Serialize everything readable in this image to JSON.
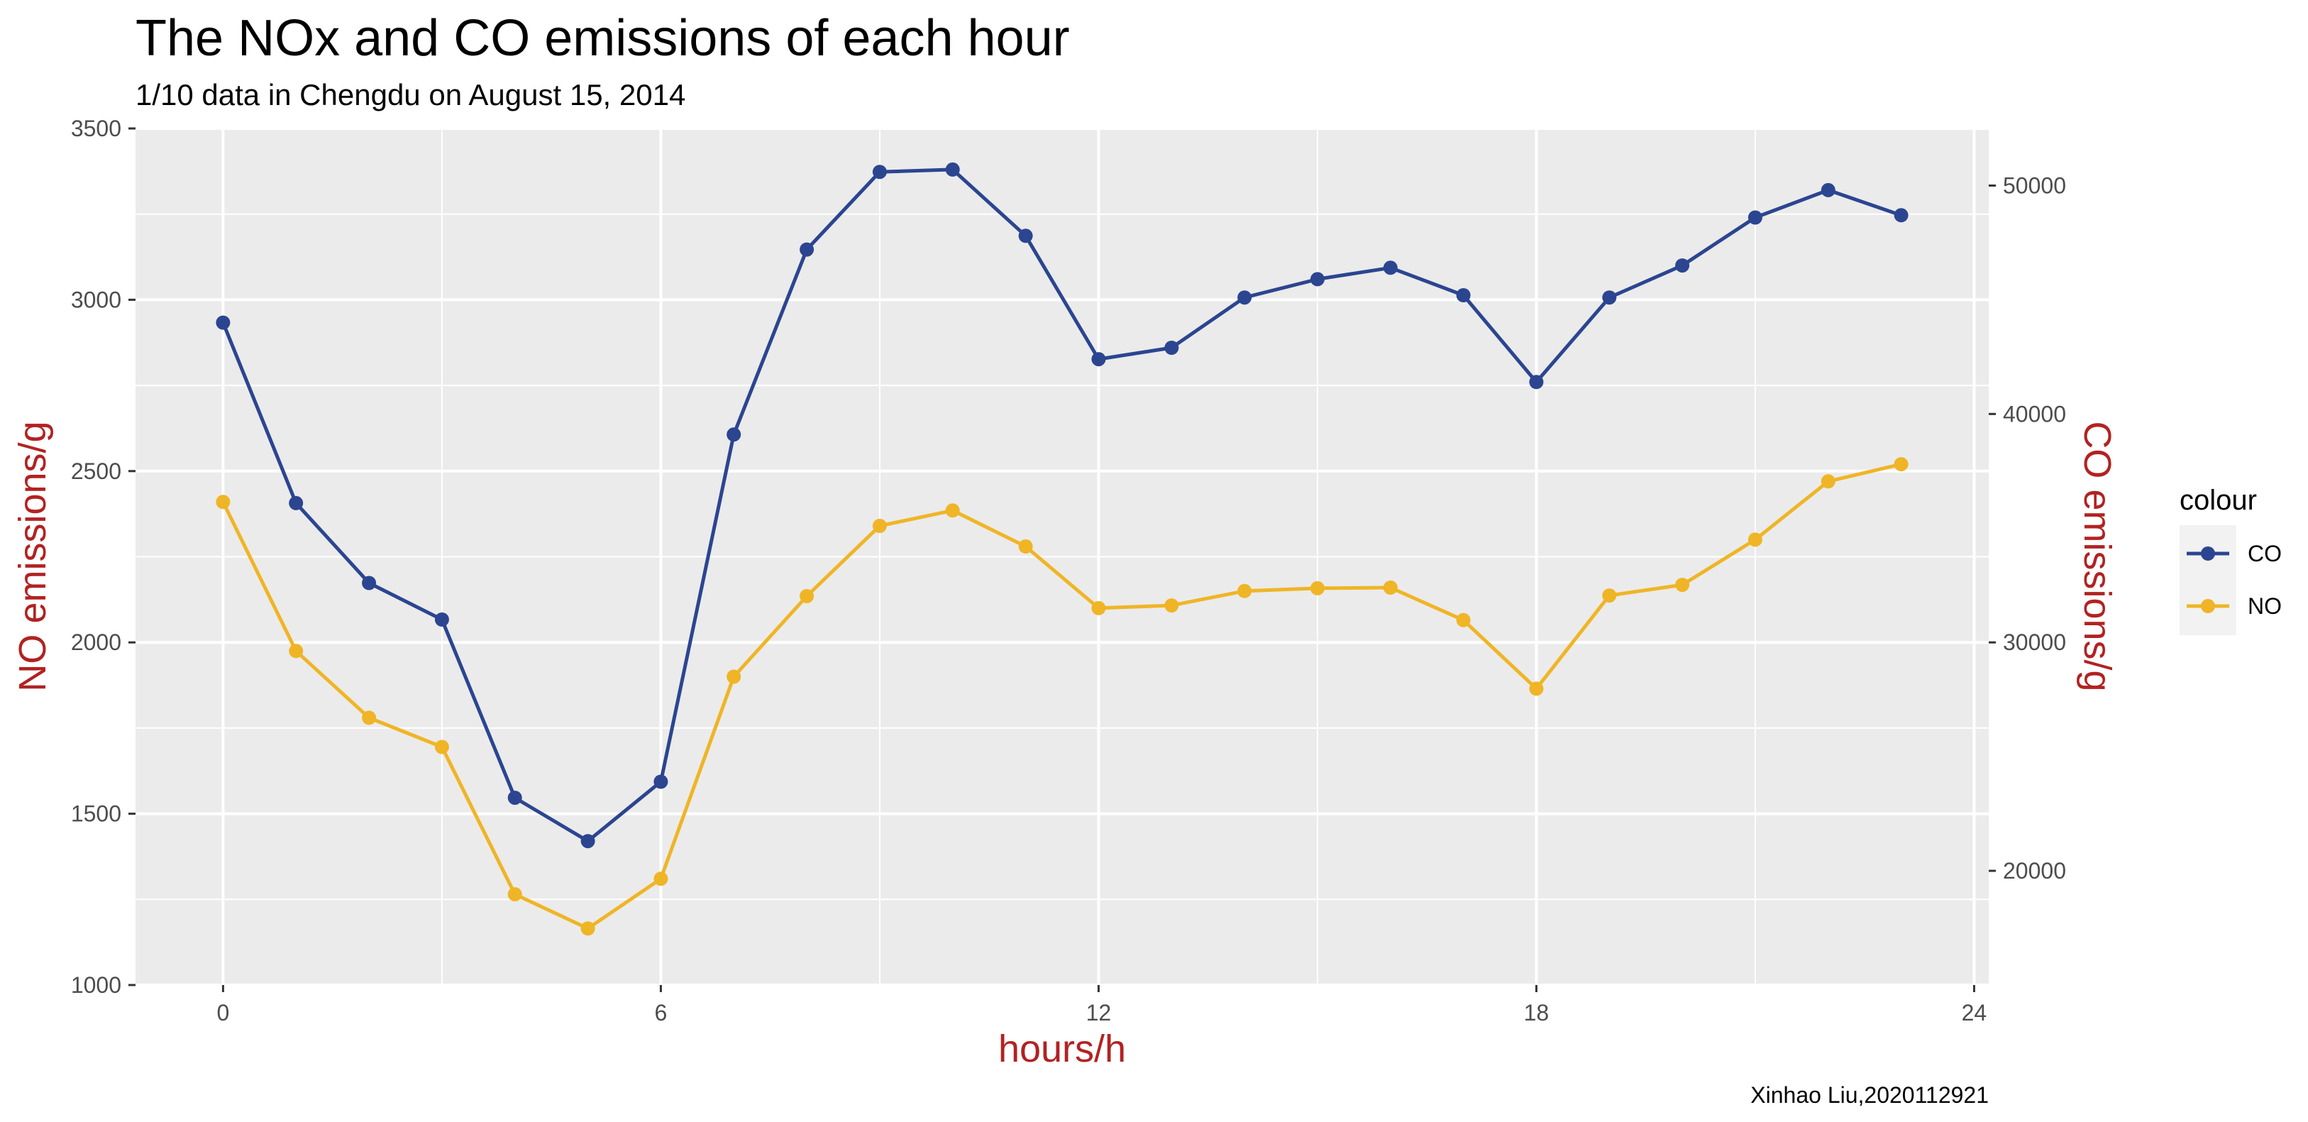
{
  "chart_data": {
    "type": "line",
    "title": "The NOx and CO emissions of each hour",
    "subtitle": "1/10 data in Chengdu on August 15, 2014",
    "caption": "Xinhao Liu,2020112921",
    "xlabel": "hours/h",
    "ylabel": "NO emissions/g",
    "y2label": "CO emissions/g",
    "xlim": [
      -1.2,
      24.2
    ],
    "ylim": [
      1000,
      3500
    ],
    "y2lim": [
      15000,
      52500
    ],
    "x_ticks": [
      0,
      6,
      12,
      18,
      24
    ],
    "y_ticks": [
      1000,
      1500,
      2000,
      2500,
      3000,
      3500
    ],
    "y2_ticks": [
      20000,
      30000,
      40000,
      50000
    ],
    "grid": true,
    "legend_title": "colour",
    "legend_position": "right",
    "x": [
      0,
      1,
      2,
      3,
      4,
      5,
      6,
      7,
      8,
      9,
      10,
      11,
      12,
      13,
      14,
      15,
      16,
      17,
      18,
      19,
      20,
      21,
      22,
      23
    ],
    "series": [
      {
        "name": "CO",
        "axis": "right",
        "color": "#2B4590",
        "values": [
          44000,
          36100,
          32600,
          31000,
          23200,
          21300,
          23900,
          39100,
          47200,
          50600,
          50700,
          47800,
          42400,
          42900,
          45100,
          45900,
          46400,
          45200,
          41400,
          45100,
          46500,
          48600,
          49800,
          48700
        ]
      },
      {
        "name": "NO",
        "axis": "left",
        "color": "#EFB526",
        "values": [
          2410,
          1975,
          1780,
          1695,
          1265,
          1165,
          1310,
          1900,
          2135,
          2340,
          2385,
          2280,
          2100,
          2108,
          2150,
          2158,
          2160,
          2065,
          1865,
          2137,
          2168,
          2300,
          2470,
          2520
        ]
      }
    ]
  }
}
